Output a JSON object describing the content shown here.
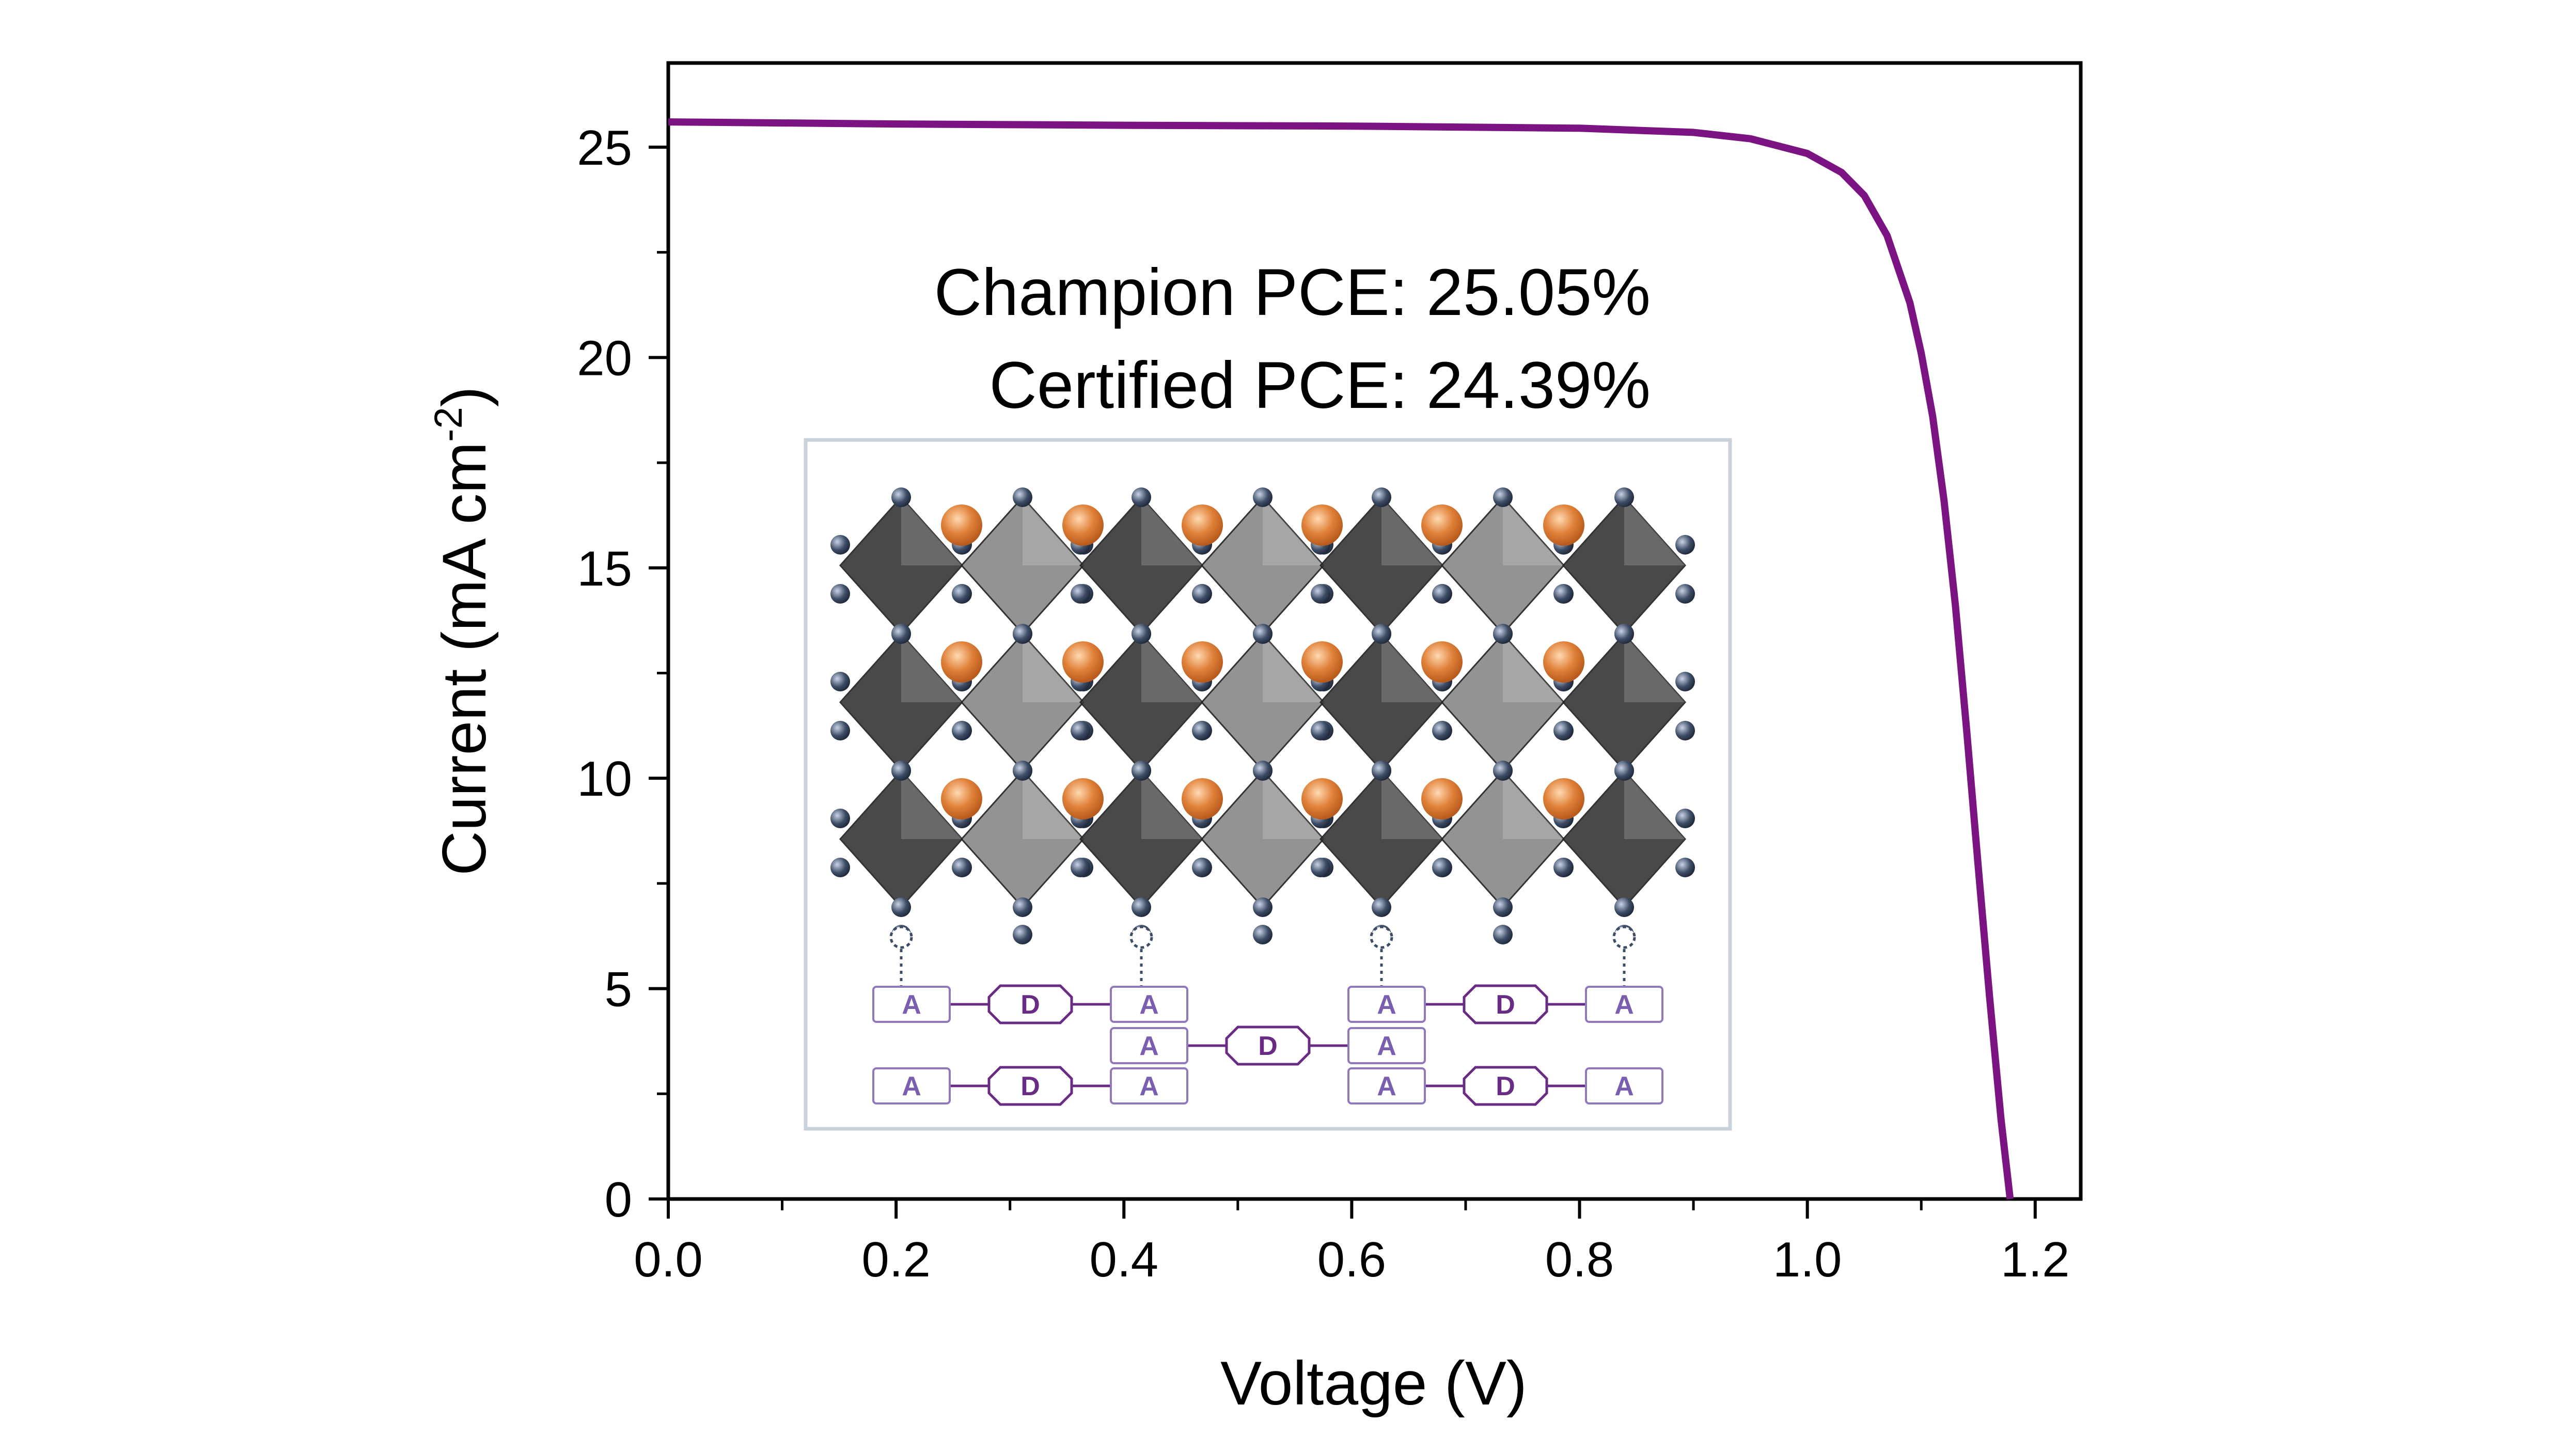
{
  "chart_data": {
    "type": "line",
    "xlabel": "Voltage (V)",
    "ylabel_main": "Current (mA cm",
    "ylabel_sup": "-2",
    "ylabel_close": ")",
    "xlim": [
      0.0,
      1.24
    ],
    "ylim": [
      0,
      27
    ],
    "x_ticks": [
      "0.0",
      "0.2",
      "0.4",
      "0.6",
      "0.8",
      "1.0",
      "1.2"
    ],
    "y_ticks": [
      "0",
      "5",
      "10",
      "15",
      "20",
      "25"
    ],
    "grid": false,
    "series": [
      {
        "color": "#7b1482",
        "x": [
          0.0,
          0.2,
          0.4,
          0.6,
          0.8,
          0.9,
          0.95,
          1.0,
          1.03,
          1.05,
          1.07,
          1.09,
          1.1,
          1.11,
          1.12,
          1.13,
          1.14,
          1.15,
          1.16,
          1.17,
          1.178
        ],
        "y": [
          25.6,
          25.55,
          25.52,
          25.5,
          25.45,
          25.35,
          25.2,
          24.85,
          24.4,
          23.85,
          22.9,
          21.3,
          20.1,
          18.6,
          16.6,
          14.1,
          11.1,
          7.9,
          4.8,
          1.9,
          0
        ]
      }
    ],
    "annotations": [
      "Champion PCE: 25.05%",
      "Certified PCE: 24.39%"
    ]
  },
  "inset": {
    "acceptor_label": "A",
    "donor_label": "D",
    "colors": {
      "frame": "#c9d2da",
      "octahedron_dark": "#3a3a3a",
      "octahedron_light": "#8a8a8a",
      "halide": "#3e4d66",
      "cation": "#e0813a",
      "block_stroke": "#8f78bd",
      "block_text": "#7a5fb0",
      "donor_stroke": "#6a2b85"
    }
  }
}
